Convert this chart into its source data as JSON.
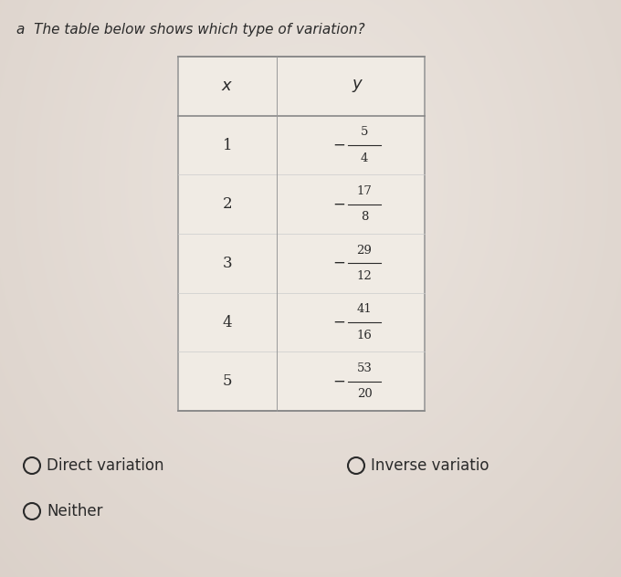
{
  "question": "The table below shows which type of variation?",
  "question_number": "a",
  "x_values": [
    "1",
    "2",
    "3",
    "4",
    "5"
  ],
  "y_values": [
    "-\\frac{5}{4}",
    "-\\frac{17}{8}",
    "-\\frac{29}{12}",
    "-\\frac{41}{16}",
    "-\\frac{53}{20}"
  ],
  "y_numerators": [
    5,
    17,
    29,
    41,
    53
  ],
  "y_denominators": [
    4,
    8,
    12,
    16,
    20
  ],
  "col_header_x": "$x$",
  "col_header_y": "$y$",
  "options": [
    "Direct variation",
    "Inverse variatio",
    "Neither"
  ],
  "bg_color_center": "#e8ddd6",
  "bg_color_edge": "#bfb0a8",
  "text_color": "#2a2a2a",
  "table_bg": "#f2ede8",
  "table_border": "#999999"
}
